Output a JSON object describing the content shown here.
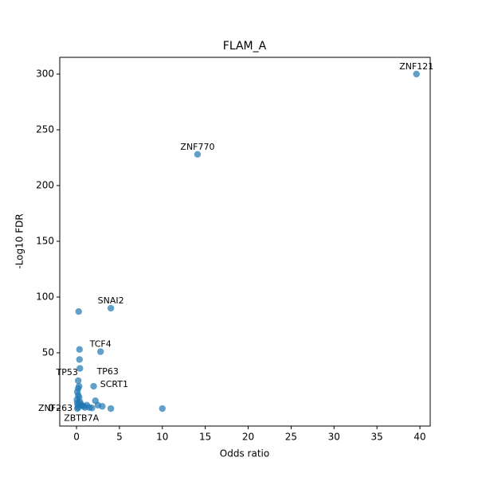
{
  "chart_data": {
    "type": "scatter",
    "title": "FLAM_A",
    "x_label": "Odds ratio",
    "y_label": "-Log10 FDR",
    "color": "#1f77b4",
    "x": [
      39.6,
      14.1,
      4.0,
      0.25,
      2.8,
      0.35,
      0.35,
      0.4,
      2.0,
      0.2,
      2.2,
      10.0,
      4.0,
      0.1,
      0.2,
      0.1,
      0.2,
      0.3,
      0.4,
      0.5,
      0.6,
      0.8,
      1.0,
      1.5,
      2.5,
      3.0,
      0.1,
      0.2,
      0.3,
      1.2,
      1.8,
      0.05,
      0.15
    ],
    "values": [
      300,
      228,
      90,
      87,
      51,
      53,
      44,
      36,
      20,
      25,
      7,
      0,
      0,
      0,
      1,
      15,
      12,
      10,
      6,
      4,
      3,
      2,
      1,
      1,
      3,
      2,
      5,
      18,
      20,
      3,
      0.5,
      8,
      3
    ],
    "labels": [
      "ZNF121",
      "ZNF770",
      "SNAI2",
      null,
      "TCF4",
      null,
      null,
      null,
      "TP63",
      "TP53",
      "SCRT1",
      null,
      null,
      "ZNF263",
      "ZBTB7A",
      null,
      null,
      null,
      null,
      null,
      null,
      null,
      null,
      null,
      null,
      null,
      null,
      null,
      null,
      null,
      null,
      null,
      null
    ],
    "xlim": [
      -1.95,
      41.2
    ],
    "ylim": [
      -15.7,
      315
    ],
    "xticks": [
      0,
      5,
      10,
      15,
      20,
      25,
      30,
      35,
      40
    ],
    "yticks": [
      0,
      50,
      100,
      150,
      200,
      250,
      300
    ]
  }
}
